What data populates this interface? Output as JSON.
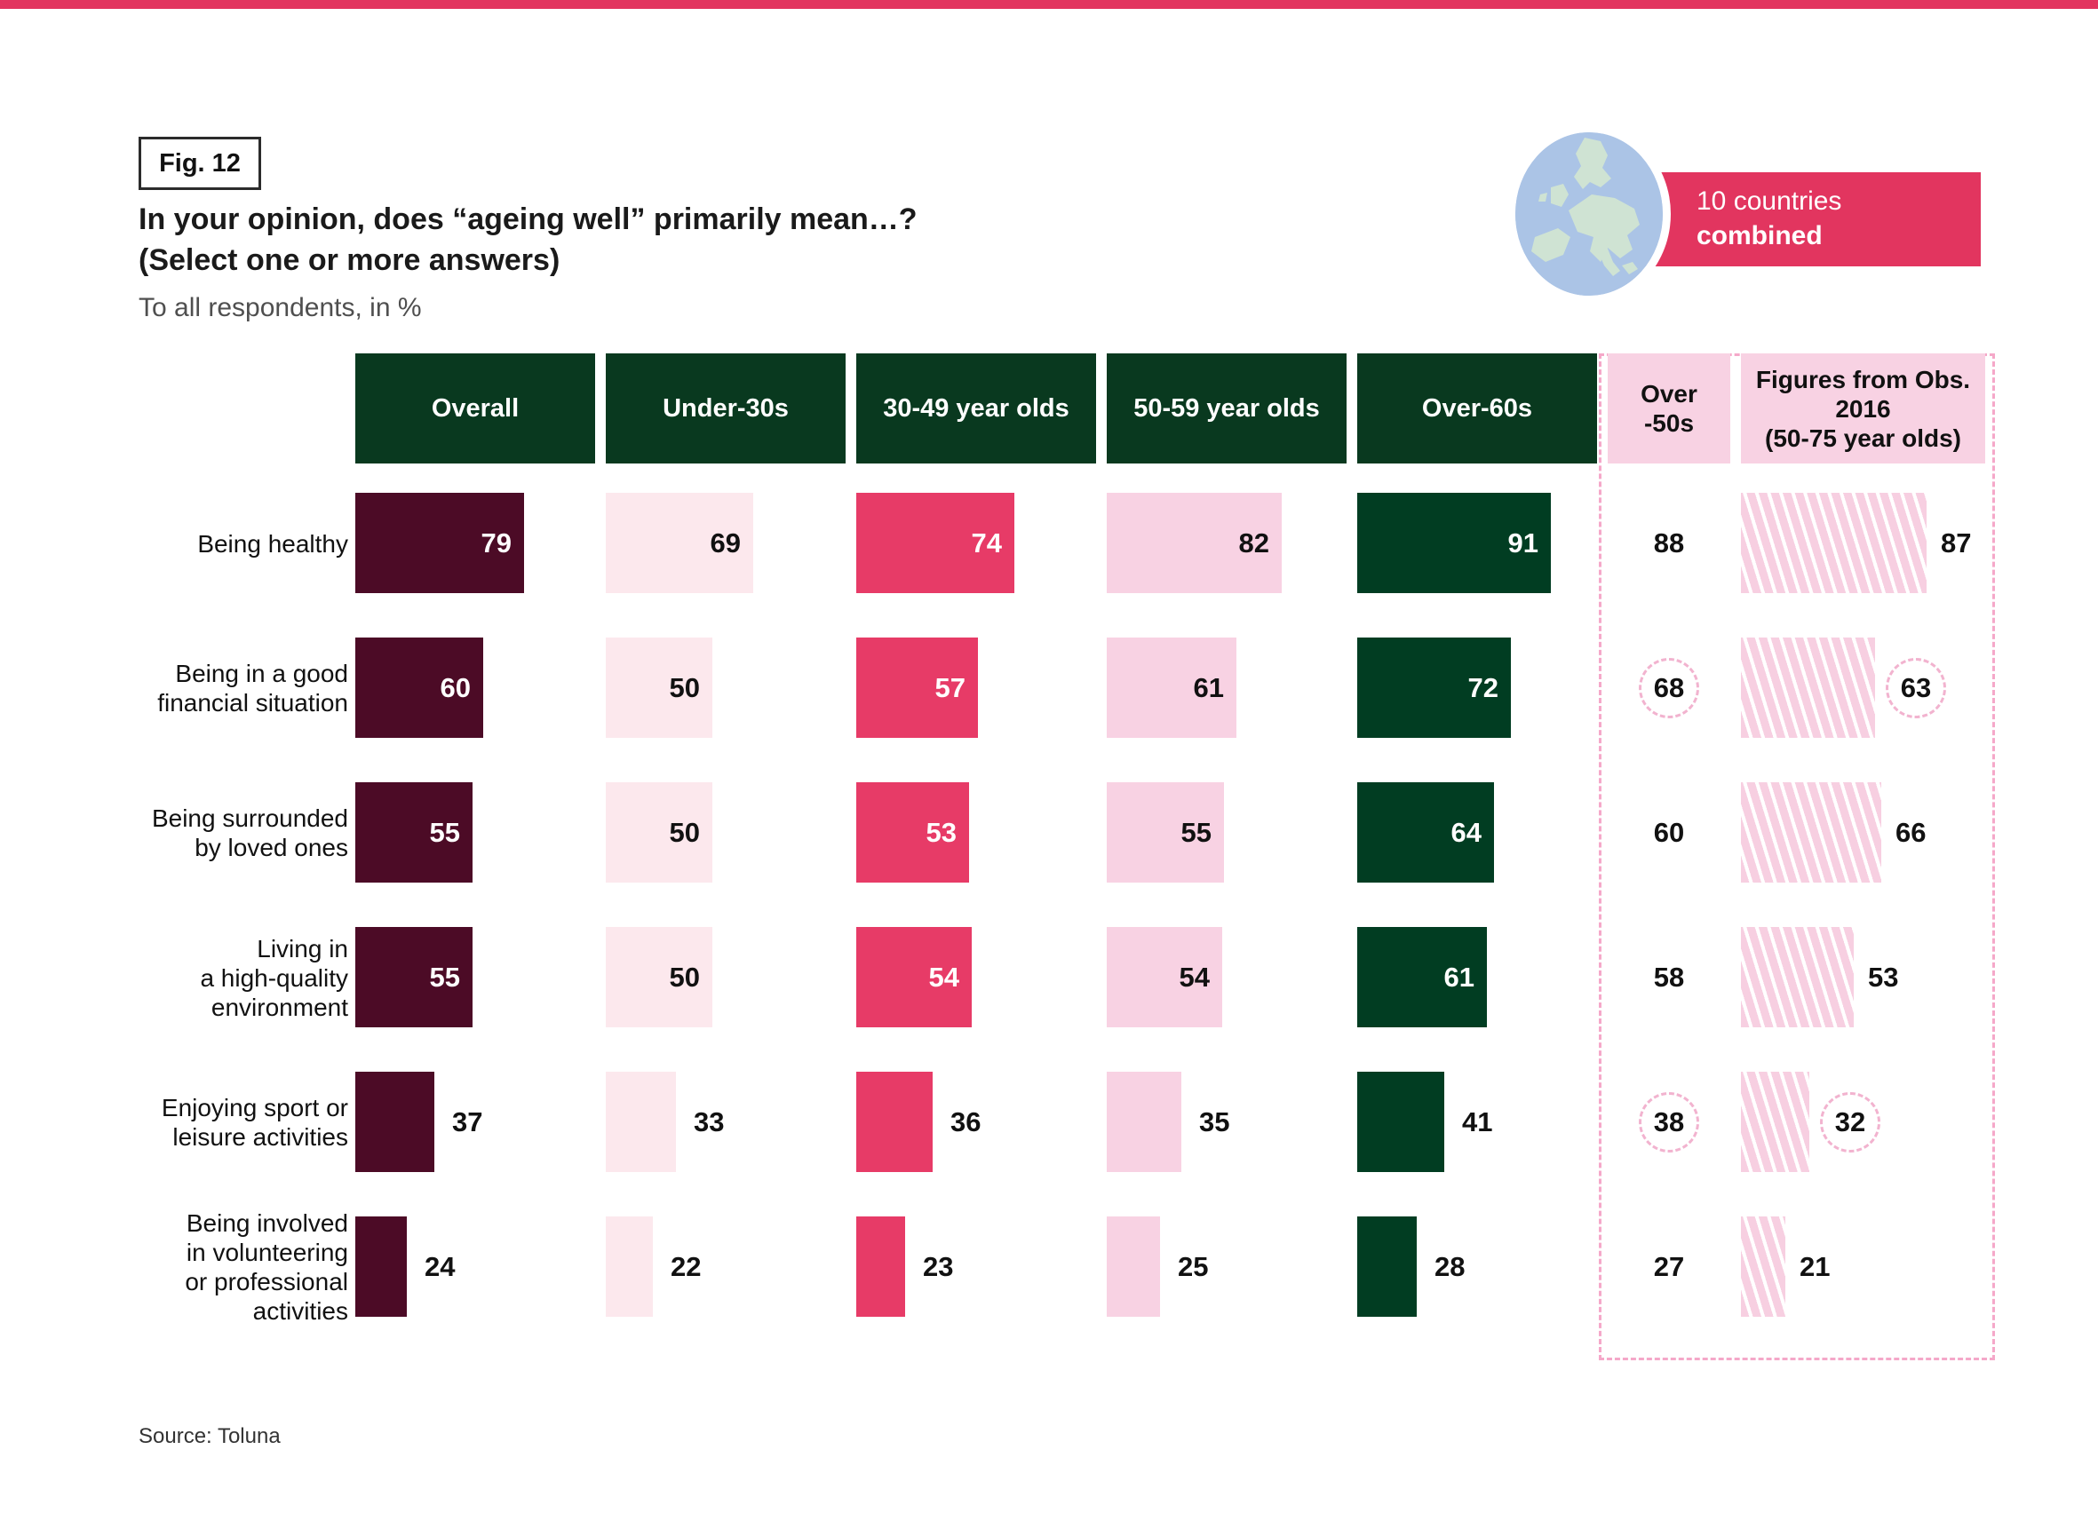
{
  "figure": {
    "tag": "Fig. 12",
    "title_line1": "In your opinion, does “ageing well” primarily mean…?",
    "title_line2": "(Select one or more answers)",
    "subtitle": "To all respondents, in %",
    "source": "Source: Toluna"
  },
  "badge": {
    "line1": "10 countries",
    "line2": "combined"
  },
  "colors": {
    "accent_pink": "#e2355f",
    "header_green": "#09391f",
    "header_pink": "#f8d2e3",
    "overall_maroon": "#4c0b26",
    "under30_blush": "#fce8ed",
    "age3049_magenta": "#e73b67",
    "age5059_lightpink": "#f8d2e3",
    "over60_green": "#013d22",
    "hatch_pink": "#f7cfe1",
    "dashed_pink": "#f5a8c9",
    "globe_sea": "#abc4e6",
    "globe_land": "#cfe3d3"
  },
  "chart_data": {
    "type": "bar",
    "orientation": "horizontal",
    "unit": "%",
    "title": "In your opinion, does “ageing well” primarily mean…?",
    "subtitle": "To all respondents, in %",
    "value_range": [
      0,
      100
    ],
    "grid": false,
    "categories": [
      "Being healthy",
      "Being in a good\nfinancial situation",
      "Being surrounded\nby loved ones",
      "Living in\na high-quality\nenvironment",
      "Enjoying sport or\nleisure activities",
      "Being involved\nin volunteering\nor professional\nactivities"
    ],
    "column_headers": [
      "Overall",
      "Under-30s",
      "30-49 year olds",
      "50-59 year olds",
      "Over-60s",
      "Over\n-50s",
      "Figures from Obs.\n2016\n(50-75 year olds)"
    ],
    "series": [
      {
        "name": "Overall",
        "style": "solid",
        "color": "#4c0b26",
        "value_text": "#ffffff",
        "values": [
          79,
          60,
          55,
          55,
          37,
          24
        ]
      },
      {
        "name": "Under-30s",
        "style": "solid",
        "color": "#fce8ed",
        "value_text": "#111111",
        "values": [
          69,
          50,
          50,
          50,
          33,
          22
        ]
      },
      {
        "name": "30-49 year olds",
        "style": "solid",
        "color": "#e73b67",
        "value_text": "#ffffff",
        "values": [
          74,
          57,
          53,
          54,
          36,
          23
        ]
      },
      {
        "name": "50-59 year olds",
        "style": "solid",
        "color": "#f8d2e3",
        "value_text": "#111111",
        "values": [
          82,
          61,
          55,
          54,
          35,
          25
        ]
      },
      {
        "name": "Over-60s",
        "style": "solid",
        "color": "#013d22",
        "value_text": "#ffffff",
        "values": [
          91,
          72,
          64,
          61,
          41,
          28
        ]
      },
      {
        "name": "Over -50s",
        "style": "number-only",
        "values": [
          88,
          68,
          60,
          58,
          38,
          27
        ],
        "circled_rows": [
          1,
          4
        ]
      },
      {
        "name": "Figures from Obs. 2016 (50-75 year olds)",
        "style": "hatched",
        "values": [
          87,
          63,
          66,
          53,
          32,
          21
        ],
        "circled_rows": [
          1,
          4
        ]
      }
    ]
  }
}
